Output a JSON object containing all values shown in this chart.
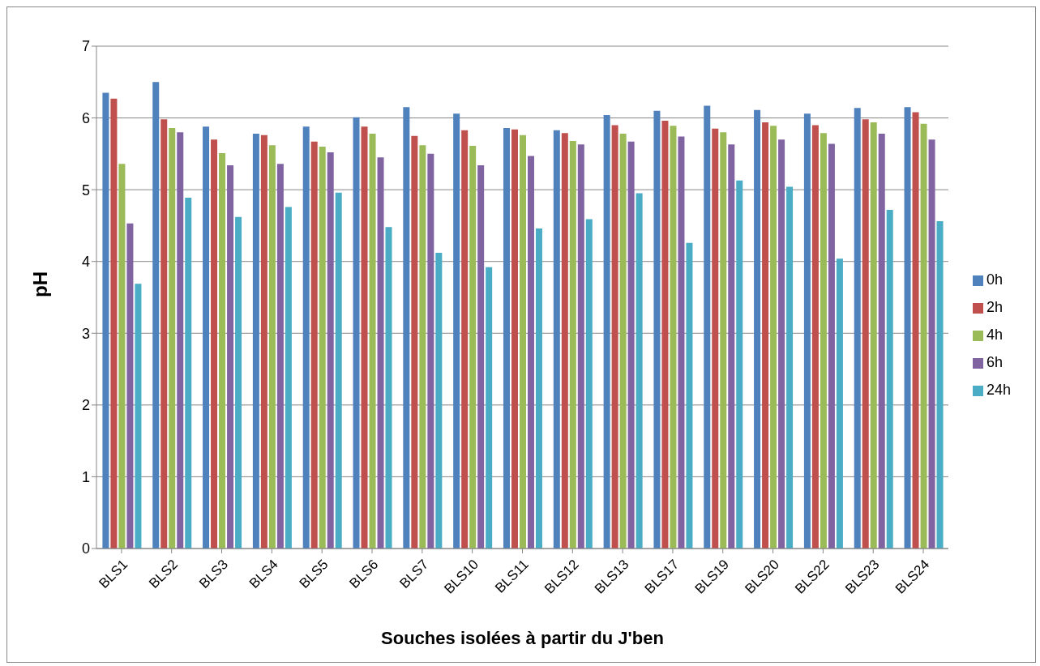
{
  "chart_data": {
    "type": "bar",
    "xlabel": "Souches isolées à partir du J'ben",
    "ylabel": "pH",
    "categories": [
      "BLS1",
      "BLS2",
      "BLS3",
      "BLS4",
      "BLS5",
      "BLS6",
      "BLS7",
      "BLS10",
      "BLS11",
      "BLS12",
      "BLS13",
      "BLS17",
      "BLS19",
      "BLS20",
      "BLS22",
      "BLS23",
      "BLS24"
    ],
    "series": [
      {
        "name": "0h",
        "color": "#4f81bd",
        "values": [
          6.35,
          6.5,
          5.88,
          5.78,
          5.88,
          6.01,
          6.15,
          6.06,
          5.86,
          5.83,
          6.04,
          6.1,
          6.17,
          6.11,
          6.06,
          6.14,
          6.15
        ]
      },
      {
        "name": "2h",
        "color": "#c0504d",
        "values": [
          6.27,
          5.98,
          5.7,
          5.76,
          5.67,
          5.88,
          5.75,
          5.83,
          5.84,
          5.79,
          5.9,
          5.96,
          5.85,
          5.94,
          5.9,
          5.98,
          6.08
        ]
      },
      {
        "name": "4h",
        "color": "#9bbb59",
        "values": [
          5.36,
          5.86,
          5.51,
          5.62,
          5.6,
          5.78,
          5.62,
          5.61,
          5.76,
          5.68,
          5.78,
          5.89,
          5.8,
          5.89,
          5.79,
          5.94,
          5.92
        ]
      },
      {
        "name": "6h",
        "color": "#8064a2",
        "values": [
          4.53,
          5.8,
          5.34,
          5.36,
          5.52,
          5.45,
          5.5,
          5.34,
          5.47,
          5.63,
          5.67,
          5.74,
          5.63,
          5.7,
          5.64,
          5.78,
          5.7
        ]
      },
      {
        "name": "24h",
        "color": "#4bacc6",
        "values": [
          3.69,
          4.89,
          4.62,
          4.76,
          4.96,
          4.48,
          4.12,
          3.92,
          4.46,
          4.59,
          4.95,
          4.26,
          5.13,
          5.04,
          4.04,
          4.72,
          4.56
        ]
      }
    ],
    "ylim": [
      0,
      7
    ],
    "yticks": [
      0,
      1,
      2,
      3,
      4,
      5,
      6,
      7
    ],
    "grid": "y",
    "legend": "right"
  }
}
